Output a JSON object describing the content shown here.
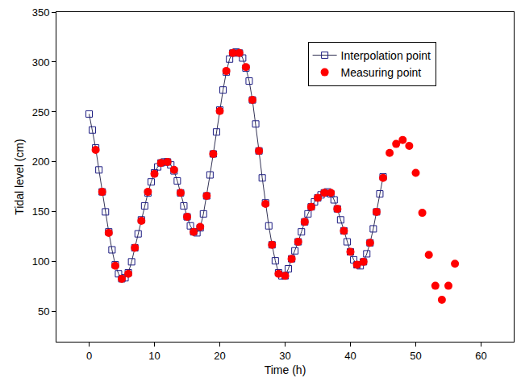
{
  "chart_data": {
    "type": "line",
    "x_label": "Time (h)",
    "y_label": "Tidal level (cm)",
    "xlim": [
      -5,
      65
    ],
    "xticks": [
      0,
      10,
      20,
      30,
      40,
      50,
      60
    ],
    "ylim": [
      20,
      350
    ],
    "yticks": [
      50,
      100,
      150,
      200,
      250,
      300,
      350
    ],
    "grid": false,
    "legend": "upper right",
    "series": [
      {
        "name": "Interpolation point",
        "type": "line",
        "color": "#1a1a80",
        "marker": "square-open",
        "line_style": "solid",
        "x": [
          0,
          0.5,
          1,
          1.5,
          2,
          2.5,
          3,
          3.5,
          4,
          4.5,
          5,
          5.5,
          6,
          6.5,
          7,
          7.5,
          8,
          8.5,
          9,
          9.5,
          10,
          10.5,
          11,
          11.5,
          12,
          12.5,
          13,
          13.5,
          14,
          14.5,
          15,
          15.5,
          16,
          16.5,
          17,
          17.5,
          18,
          18.5,
          19,
          19.5,
          20,
          20.5,
          21,
          21.5,
          22,
          22.5,
          23,
          23.5,
          24,
          24.5,
          25,
          25.5,
          26,
          26.5,
          27,
          27.5,
          28,
          28.5,
          29,
          29.5,
          30,
          30.5,
          31,
          31.5,
          32,
          32.5,
          33,
          33.5,
          34,
          34.5,
          35,
          35.5,
          36,
          36.5,
          37,
          37.5,
          38,
          38.5,
          39,
          39.5,
          40,
          40.5,
          41,
          41.5,
          42,
          42.5,
          43,
          43.5,
          44,
          44.5,
          45
        ],
        "values": [
          248,
          232,
          214,
          192,
          170,
          150,
          130,
          112,
          97,
          88,
          83,
          84,
          89,
          100,
          114,
          128,
          142,
          156,
          169,
          180,
          189,
          195,
          199,
          200,
          200,
          197,
          191,
          181,
          169,
          156,
          145,
          136,
          130,
          129,
          134,
          148,
          166,
          187,
          208,
          230,
          252,
          272,
          290,
          303,
          309,
          310,
          309,
          304,
          294,
          281,
          262,
          238,
          211,
          184,
          159,
          136,
          117,
          101,
          89,
          86,
          86,
          93,
          103,
          111,
          120,
          130,
          140,
          148,
          155,
          160,
          164,
          167,
          169,
          170,
          168,
          162,
          153,
          142,
          131,
          120,
          110,
          102,
          97,
          96,
          100,
          108,
          119,
          133,
          150,
          168,
          185
        ]
      },
      {
        "name": "Measuring point",
        "type": "scatter",
        "color": "#ff0000",
        "marker": "circle",
        "x": [
          1,
          2,
          3,
          4,
          5,
          6,
          7,
          8,
          9,
          10,
          11,
          12,
          13,
          14,
          15,
          16,
          17,
          18,
          19,
          20,
          21,
          22,
          23,
          24,
          25,
          26,
          27,
          28,
          29,
          30,
          31,
          32,
          33,
          34,
          35,
          36,
          37,
          38,
          39,
          40,
          41,
          42,
          43,
          44,
          45,
          46,
          47,
          48,
          49,
          50,
          51,
          52,
          53,
          54,
          55,
          56
        ],
        "values": [
          212,
          170,
          129,
          96,
          83,
          88,
          114,
          141,
          170,
          188,
          199,
          200,
          192,
          169,
          145,
          130,
          135,
          166,
          208,
          251,
          291,
          309,
          309,
          295,
          262,
          211,
          158,
          117,
          88,
          86,
          103,
          120,
          140,
          155,
          164,
          169,
          169,
          153,
          131,
          110,
          97,
          100,
          119,
          150,
          184,
          209,
          218,
          222,
          216,
          189,
          149,
          107,
          76,
          62,
          76,
          98
        ]
      }
    ]
  }
}
